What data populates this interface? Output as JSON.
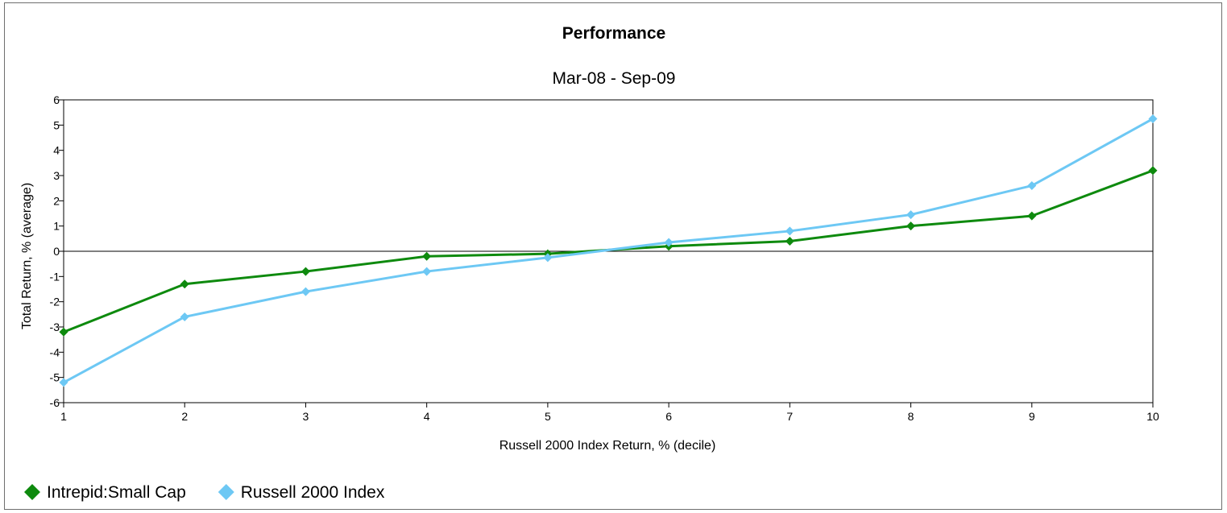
{
  "chart_data": {
    "type": "line",
    "title": "Performance",
    "subtitle": "Mar-08 - Sep-09",
    "xlabel": "Russell 2000 Index Return, % (decile)",
    "ylabel": "Total Return, % (average)",
    "x": [
      1,
      2,
      3,
      4,
      5,
      6,
      7,
      8,
      9,
      10
    ],
    "xlim": [
      1,
      10
    ],
    "ylim": [
      -6,
      6
    ],
    "yticks": [
      6,
      5,
      4,
      3,
      2,
      1,
      0,
      -1,
      -2,
      -3,
      -4,
      -5,
      -6
    ],
    "xticks": [
      1,
      2,
      3,
      4,
      5,
      6,
      7,
      8,
      9,
      10
    ],
    "grid": false,
    "legend_position": "bottom-left",
    "series": [
      {
        "name": "Intrepid:Small Cap",
        "color": "#0e8a0e",
        "marker": "diamond",
        "values": [
          -3.2,
          -1.3,
          -0.8,
          -0.2,
          -0.1,
          0.2,
          0.4,
          1.0,
          1.4,
          3.2
        ]
      },
      {
        "name": "Russell 2000 Index",
        "color": "#6dc8f4",
        "marker": "diamond",
        "values": [
          -5.2,
          -2.6,
          -1.6,
          -0.8,
          -0.25,
          0.35,
          0.8,
          1.45,
          2.6,
          5.25
        ]
      }
    ]
  }
}
